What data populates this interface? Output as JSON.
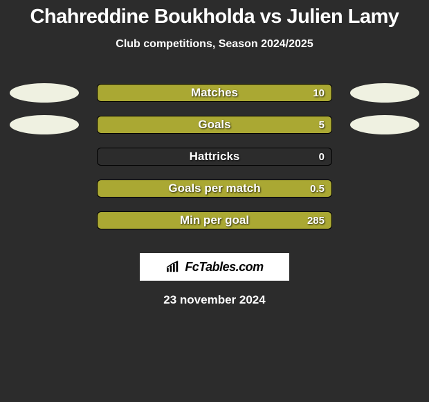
{
  "title": "Chahreddine Boukholda vs Julien Lamy",
  "title_fontsize": 29,
  "title_color": "#ffffff",
  "subtitle": "Club competitions, Season 2024/2025",
  "subtitle_fontsize": 16,
  "subtitle_color": "#ffffff",
  "background_color": "#2c2c2c",
  "bar_track_width": 340,
  "bar_track_height": 26,
  "bar_border_color": "#000000",
  "bar_border_radius": 6,
  "label_fontsize": 17,
  "value_fontsize": 15,
  "side_oval_width": 100,
  "side_oval_height": 28,
  "left_player_color": "#eff1e1",
  "right_player_color": "#eff1e1",
  "rows": [
    {
      "label": "Matches",
      "value_right": "10",
      "left_fill_pct": 0,
      "right_fill_pct": 100,
      "left_color": "#aaa833",
      "right_color": "#aaa833",
      "show_oval_left": true,
      "show_oval_right": true
    },
    {
      "label": "Goals",
      "value_right": "5",
      "left_fill_pct": 0,
      "right_fill_pct": 100,
      "left_color": "#aaa833",
      "right_color": "#aaa833",
      "show_oval_left": true,
      "show_oval_right": true
    },
    {
      "label": "Hattricks",
      "value_right": "0",
      "left_fill_pct": 0,
      "right_fill_pct": 0,
      "left_color": "#aaa833",
      "right_color": "#aaa833",
      "show_oval_left": false,
      "show_oval_right": false
    },
    {
      "label": "Goals per match",
      "value_right": "0.5",
      "left_fill_pct": 0,
      "right_fill_pct": 100,
      "left_color": "#aaa833",
      "right_color": "#aaa833",
      "show_oval_left": false,
      "show_oval_right": false
    },
    {
      "label": "Min per goal",
      "value_right": "285",
      "left_fill_pct": 0,
      "right_fill_pct": 100,
      "left_color": "#aaa833",
      "right_color": "#aaa833",
      "show_oval_left": false,
      "show_oval_right": false
    }
  ],
  "badge_text": "FcTables.com",
  "badge_fontsize": 18,
  "date": "23 november 2024",
  "date_fontsize": 17
}
